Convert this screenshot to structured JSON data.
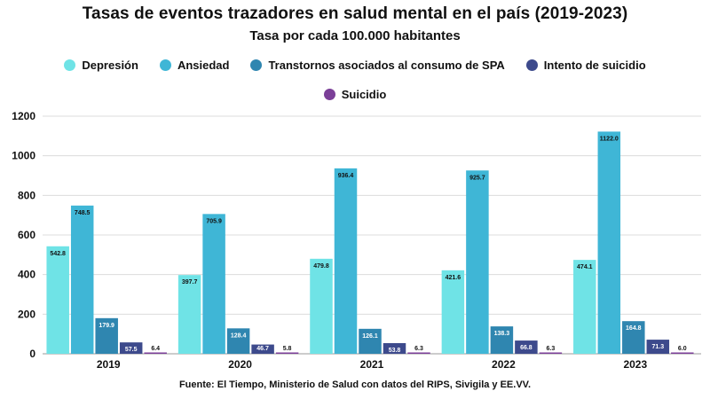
{
  "chart_data": {
    "type": "bar",
    "title": "Tasas de eventos trazadores en salud mental en el país (2019-2023)",
    "subtitle": "Tasa por cada 100.000 habitantes",
    "categories": [
      "2019",
      "2020",
      "2021",
      "2022",
      "2023"
    ],
    "series": [
      {
        "name": "Depresión",
        "color": "#6fe3e6",
        "values": [
          542.8,
          397.7,
          479.8,
          421.6,
          474.1
        ],
        "labels": [
          "542.8",
          "397.7",
          "479.8",
          "421.6",
          "474.1"
        ]
      },
      {
        "name": "Ansiedad",
        "color": "#3fb6d6",
        "values": [
          748.5,
          705.9,
          936.4,
          925.7,
          1122.0
        ],
        "labels": [
          "748.5",
          "705.9",
          "936.4",
          "925.7",
          "1122.0"
        ]
      },
      {
        "name": "Transtornos asociados al consumo de SPA",
        "color": "#2f86b0",
        "values": [
          179.9,
          128.4,
          126.1,
          138.3,
          164.8
        ],
        "labels": [
          "179.9",
          "128.4",
          "126.1",
          "138.3",
          "164.8"
        ]
      },
      {
        "name": "Intento de suicidio",
        "color": "#3d4a8c",
        "values": [
          57.5,
          46.7,
          53.8,
          66.8,
          71.3
        ],
        "labels": [
          "57.5",
          "46.7",
          "53.8",
          "66.8",
          "71.3"
        ]
      },
      {
        "name": "Suicidio",
        "color": "#7b3f98",
        "values": [
          6.4,
          5.8,
          6.3,
          6.3,
          6.0
        ],
        "labels": [
          "6.4",
          "5.8",
          "6.3",
          "6.3",
          "6.0"
        ]
      }
    ],
    "ylim": [
      0,
      1200
    ],
    "yticks": [
      "0",
      "200",
      "400",
      "600",
      "800",
      "1000",
      "1200"
    ],
    "xlabel": "",
    "ylabel": "",
    "grid": true,
    "legend": "top-center",
    "source": "Fuente: El Tiempo, Ministerio de Salud con datos del RIPS, Sivigila y EE.VV."
  }
}
